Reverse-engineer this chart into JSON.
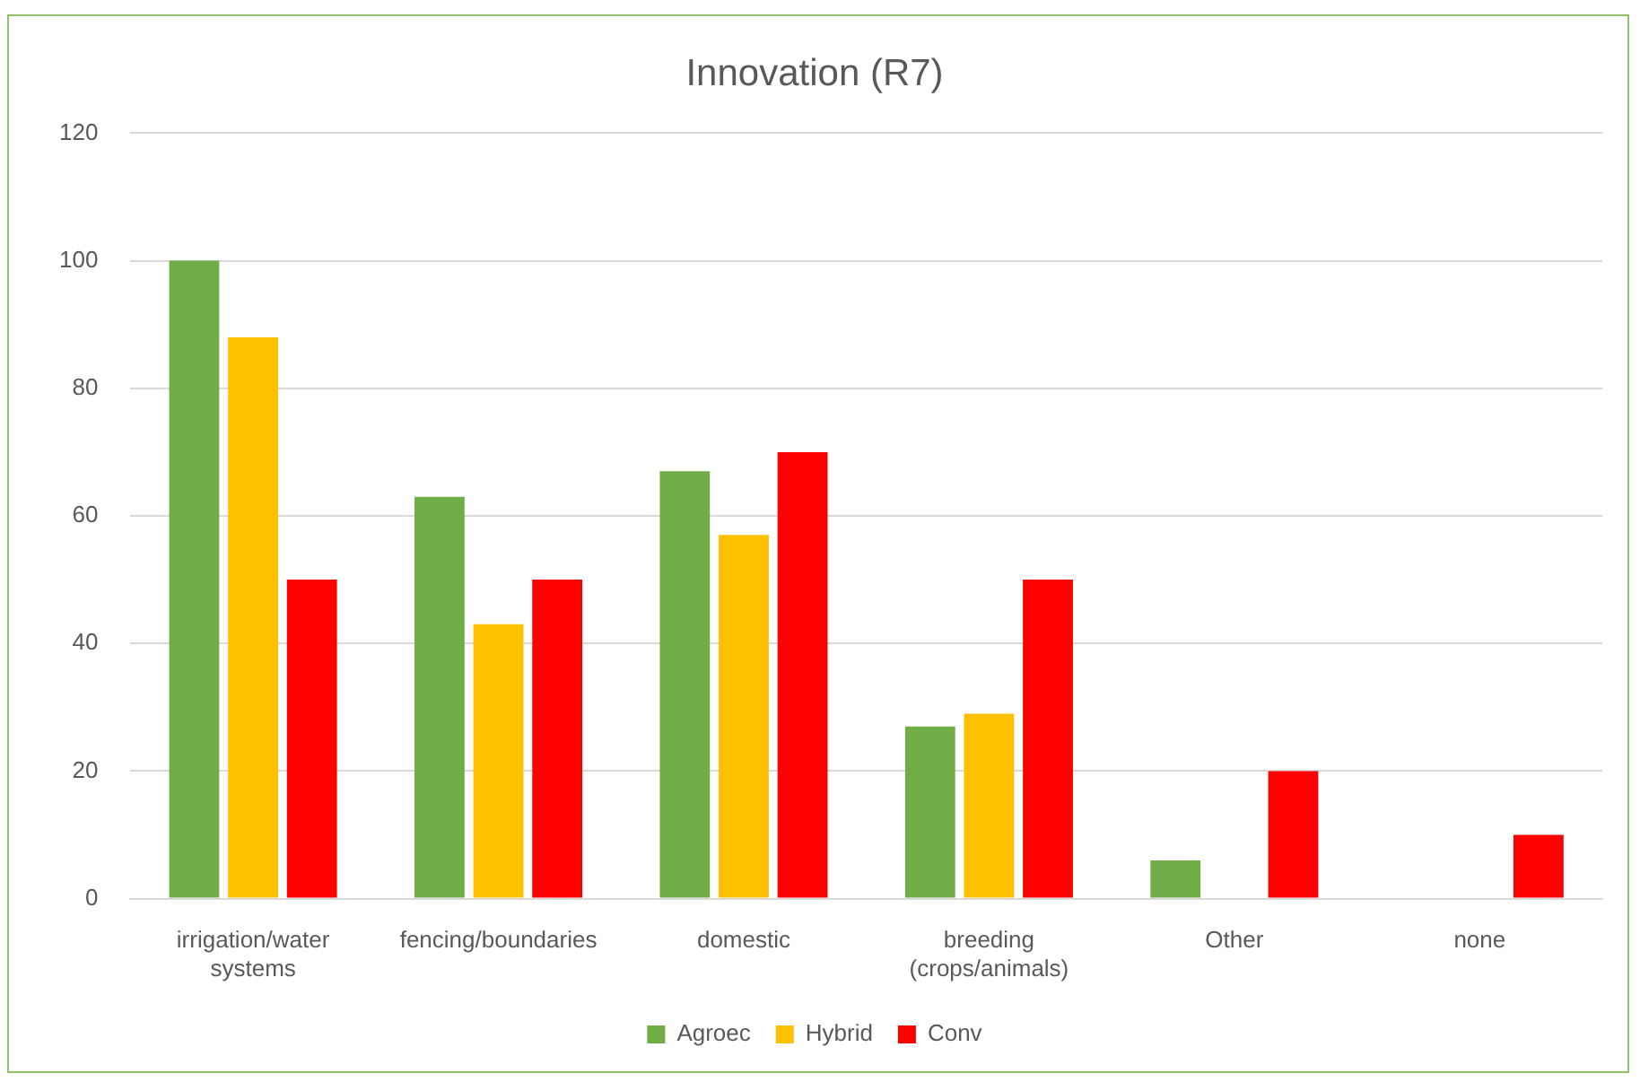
{
  "chart_data": {
    "type": "bar",
    "title": "Innovation (R7)",
    "categories": [
      "irrigation/water systems",
      "fencing/boundaries",
      "domestic",
      "breeding (crops/animals)",
      "Other",
      "none"
    ],
    "series": [
      {
        "name": "Agroec",
        "color": "#70ad47",
        "values": [
          100,
          63,
          67,
          27,
          6,
          0
        ]
      },
      {
        "name": "Hybrid",
        "color": "#ffc000",
        "values": [
          88,
          43,
          57,
          29,
          0,
          0
        ]
      },
      {
        "name": "Conv",
        "color": "#ff0000",
        "values": [
          50,
          50,
          70,
          50,
          20,
          10
        ]
      }
    ],
    "ylim": [
      0,
      120
    ],
    "yticks": [
      0,
      20,
      40,
      60,
      80,
      100,
      120
    ],
    "grid": "y",
    "legend": "bottom"
  }
}
